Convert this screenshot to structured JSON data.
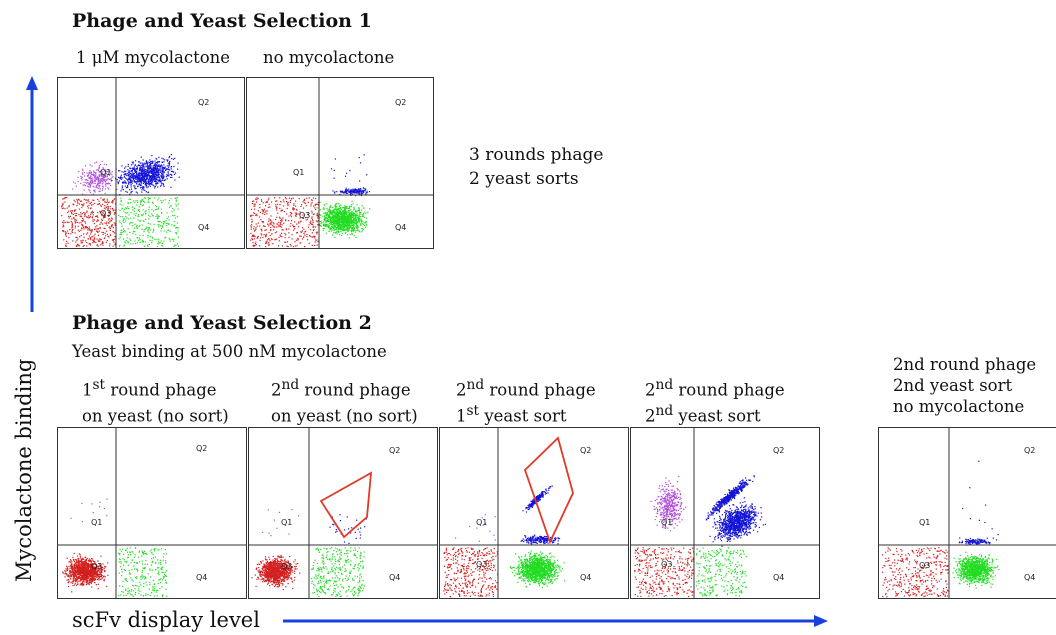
{
  "section1": {
    "title": "Phage and Yeast Selection 1",
    "panel_labels": [
      "1 μM mycolactone",
      "no mycolactone"
    ],
    "note_lines": [
      "3 rounds phage",
      "2 yeast sorts"
    ]
  },
  "section2": {
    "title": "Phage and Yeast Selection 2",
    "subtitle": "Yeast binding at 500 nM mycolactone",
    "panel_labels": [
      {
        "line1_pre": "1",
        "line1_sup": "st",
        "line1_post": " round phage",
        "line2_pre": "on yeast (no sort)",
        "line2_sup": "",
        "line2_post": ""
      },
      {
        "line1_pre": "2",
        "line1_sup": "nd",
        "line1_post": " round phage",
        "line2_pre": "on yeast (no sort)",
        "line2_sup": "",
        "line2_post": ""
      },
      {
        "line1_pre": "2",
        "line1_sup": "nd",
        "line1_post": " round phage",
        "line2_pre": "1",
        "line2_sup": "st",
        "line2_post": " yeast sort"
      },
      {
        "line1_pre": "2",
        "line1_sup": "nd",
        "line1_post": " round phage",
        "line2_pre": "2",
        "line2_sup": "nd",
        "line2_post": " yeast sort"
      }
    ]
  },
  "side_panel": {
    "label_lines": [
      "2nd round phage",
      "2nd yeast sort",
      "no mycolactone"
    ]
  },
  "axes": {
    "y_label": "Mycolactone binding",
    "x_label": "scFv display level",
    "arrow_color": "#1a3fe0"
  },
  "quadrant_labels": [
    "Q1",
    "Q2",
    "Q3",
    "Q4"
  ],
  "colors": {
    "q1": "#b04fd8",
    "q2": "#1414d8",
    "q3": "#d42020",
    "q4": "#22dd22",
    "gate": "#e03a2a"
  }
}
